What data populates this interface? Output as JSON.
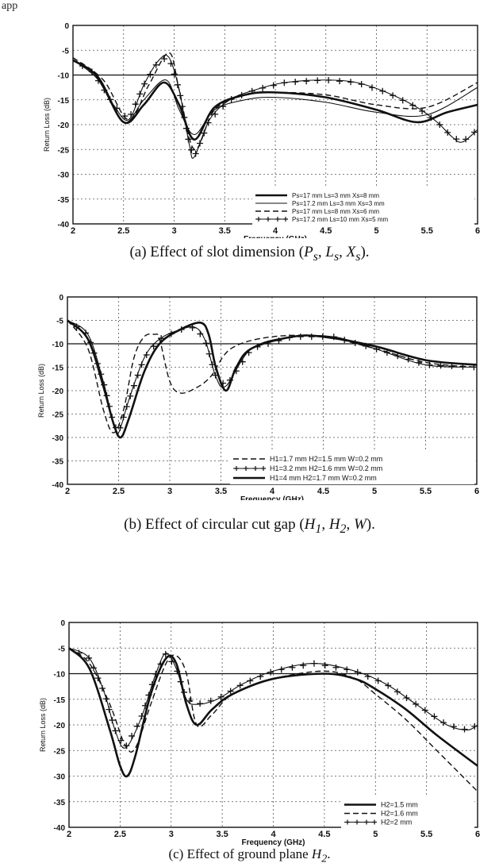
{
  "page_heading": "app",
  "captions": [
    {
      "prefix": "(a) Effect of slot dimension (",
      "vars": "P_s, L_s, X_s",
      "suffix": ")."
    },
    {
      "prefix": "(b) Effect of circular cut gap (",
      "vars": "H_1, H_2, W",
      "suffix": ")."
    },
    {
      "prefix": "(c)  Effect of ground plane ",
      "vars": "H_2.",
      "suffix": ""
    }
  ],
  "chart_data": [
    {
      "type": "line",
      "xlabel": "Frequency (GHz)",
      "ylabel": "Return Loss (dB)",
      "xlim": [
        2,
        6
      ],
      "ylim": [
        -40,
        0
      ],
      "xticks": [
        "2",
        "2.5",
        "3",
        "3.5",
        "4",
        "4.5",
        "5",
        "5.5",
        "6"
      ],
      "yticks": [
        "0",
        "-5",
        "-10",
        "-15",
        "-20",
        "-25",
        "-30",
        "-35",
        "-40"
      ],
      "reference_line": -10,
      "grid": true,
      "legend_position": "bottom-right",
      "series": [
        {
          "name": "Ps=17 mm  Ls=3 mm   Xs=8 mm",
          "style": "thick",
          "x": [
            2,
            2.25,
            2.5,
            2.7,
            2.9,
            3.05,
            3.2,
            3.4,
            3.7,
            4,
            4.5,
            5,
            5.4,
            5.7,
            6
          ],
          "y": [
            -7,
            -10.5,
            -19.5,
            -16,
            -11.5,
            -16,
            -23,
            -16.5,
            -14,
            -13.5,
            -14.5,
            -17,
            -19.5,
            -17.5,
            -16
          ]
        },
        {
          "name": "Ps=17.2 mm  Ls=3 mm  Xs=3 mm",
          "style": "thin",
          "x": [
            2,
            2.25,
            2.5,
            2.7,
            2.92,
            3.05,
            3.2,
            3.4,
            3.7,
            4,
            4.5,
            5,
            5.5,
            6
          ],
          "y": [
            -7,
            -11,
            -19.5,
            -15,
            -11,
            -17,
            -22,
            -17,
            -15,
            -14.5,
            -15.5,
            -17.5,
            -18,
            -12.5
          ]
        },
        {
          "name": "Ps=17 mm  Ls=8 mm   Xs=6 mm",
          "style": "dashed",
          "x": [
            2,
            2.3,
            2.55,
            2.75,
            2.95,
            3.05,
            3.2,
            3.4,
            3.7,
            4,
            4.5,
            5,
            5.5,
            6
          ],
          "y": [
            -6.5,
            -11,
            -19,
            -12,
            -5.5,
            -13,
            -25,
            -17,
            -14,
            -13.5,
            -14,
            -16,
            -16.5,
            -11.5
          ]
        },
        {
          "name": "Ps=17.2 mm Ls=10 mm Xs=5 mm",
          "style": "crosses",
          "x": [
            2,
            2.2,
            2.4,
            2.55,
            2.7,
            2.85,
            2.95,
            3.05,
            3.15,
            3.2,
            3.35,
            3.55,
            3.8,
            4.1,
            4.5,
            4.8,
            5.1,
            5.4,
            5.6,
            5.75,
            5.85,
            6
          ],
          "y": [
            -7,
            -9.5,
            -16,
            -19,
            -12,
            -7,
            -6.5,
            -13,
            -24,
            -26.5,
            -19,
            -15,
            -13,
            -11.5,
            -11,
            -11.5,
            -13.5,
            -16.5,
            -19.5,
            -22.5,
            -23.5,
            -21
          ]
        }
      ]
    },
    {
      "type": "line",
      "xlabel": "Frequency (GHz)",
      "ylabel": "Return Loss (dB)",
      "xlim": [
        2,
        6
      ],
      "ylim": [
        -40,
        0
      ],
      "xticks": [
        "2",
        "2.5",
        "3",
        "3.5",
        "4",
        "4.5",
        "5",
        "5.5",
        "6"
      ],
      "yticks": [
        "0",
        "-5",
        "-10",
        "-15",
        "-20",
        "-25",
        "-30",
        "-35",
        "-40"
      ],
      "reference_line": -10,
      "grid": true,
      "legend_position": "bottom-right",
      "series": [
        {
          "name": "H1=1.7 mm H2=1.5 mm W=0.2 mm",
          "style": "dashed",
          "x": [
            2,
            2.2,
            2.35,
            2.45,
            2.55,
            2.65,
            2.75,
            2.85,
            2.9,
            3.0,
            3.1,
            3.25,
            3.4,
            3.6,
            4,
            4.5,
            5,
            5.5,
            6
          ],
          "y": [
            -5,
            -11,
            -24,
            -29,
            -24,
            -13,
            -8.5,
            -8,
            -9,
            -18,
            -20.5,
            -19.5,
            -17,
            -11,
            -8.5,
            -8.5,
            -11,
            -14,
            -15
          ]
        },
        {
          "name": "H1=3.2 mm H2=1.6 mm W=0.2 mm",
          "style": "crosses",
          "x": [
            2,
            2.2,
            2.35,
            2.45,
            2.5,
            2.6,
            2.75,
            2.9,
            3.1,
            3.25,
            3.35,
            3.45,
            3.55,
            3.8,
            4.2,
            4.6,
            5,
            5.5,
            6
          ],
          "y": [
            -5,
            -8,
            -18,
            -27,
            -29,
            -22,
            -13,
            -9,
            -7,
            -6.5,
            -9.5,
            -17,
            -19,
            -11,
            -8.5,
            -8.5,
            -11,
            -14.5,
            -15
          ]
        },
        {
          "name": "H1=4 mm   H2=1.7 mm W=0.2 mm",
          "style": "thick",
          "x": [
            2,
            2.2,
            2.35,
            2.45,
            2.52,
            2.6,
            2.75,
            2.9,
            3.1,
            3.3,
            3.38,
            3.45,
            3.55,
            3.65,
            3.8,
            4.2,
            4.5,
            5,
            5.5,
            6
          ],
          "y": [
            -5,
            -9,
            -19,
            -27,
            -30,
            -26,
            -16,
            -10,
            -7,
            -5.5,
            -8,
            -15,
            -20,
            -15,
            -11,
            -8.5,
            -8.5,
            -10.5,
            -13.5,
            -14.5
          ]
        }
      ]
    },
    {
      "type": "line",
      "xlabel": "Frequency (GHz)",
      "ylabel": "Return Loss (dB)",
      "xlim": [
        2,
        6
      ],
      "ylim": [
        -40,
        0
      ],
      "xticks": [
        "2",
        "2.5",
        "3",
        "3.5",
        "4",
        "4.5",
        "5",
        "5.5",
        "6"
      ],
      "yticks": [
        "0",
        "-5",
        "-10",
        "-15",
        "-20",
        "-25",
        "-30",
        "-35",
        "-40"
      ],
      "reference_line": -10,
      "grid": true,
      "legend_position": "bottom-right",
      "series": [
        {
          "name": "H2=1.5 mm",
          "style": "thick",
          "x": [
            2,
            2.2,
            2.4,
            2.5,
            2.57,
            2.65,
            2.8,
            2.95,
            3.05,
            3.15,
            3.25,
            3.4,
            3.6,
            4,
            4.5,
            4.8,
            5,
            5.3,
            5.6,
            6
          ],
          "y": [
            -5,
            -9,
            -21,
            -28,
            -30,
            -26,
            -14,
            -7,
            -8,
            -16,
            -20,
            -17,
            -14,
            -11,
            -10,
            -11,
            -13,
            -17,
            -22,
            -28
          ]
        },
        {
          "name": "H2=1.6 mm",
          "style": "dashed",
          "x": [
            2,
            2.2,
            2.4,
            2.55,
            2.65,
            2.8,
            2.95,
            3.05,
            3.15,
            3.25,
            3.4,
            3.6,
            4,
            4.5,
            4.8,
            5,
            5.3,
            5.6,
            6
          ],
          "y": [
            -5,
            -8,
            -16,
            -24,
            -24.5,
            -16,
            -8,
            -6.5,
            -10,
            -20,
            -18,
            -14,
            -11,
            -9.5,
            -11,
            -14,
            -19,
            -25,
            -33
          ]
        },
        {
          "name": "H2=2 mm",
          "style": "crosses",
          "x": [
            2,
            2.2,
            2.35,
            2.45,
            2.55,
            2.7,
            2.85,
            2.95,
            3.05,
            3.15,
            3.25,
            3.45,
            3.7,
            4,
            4.4,
            4.8,
            5.1,
            5.4,
            5.7,
            5.9,
            6
          ],
          "y": [
            -5,
            -7,
            -14,
            -21,
            -24.5,
            -19,
            -10,
            -6,
            -9,
            -15,
            -16,
            -15,
            -12,
            -9.5,
            -8,
            -9.5,
            -12,
            -16,
            -20,
            -21,
            -20
          ]
        }
      ]
    }
  ]
}
